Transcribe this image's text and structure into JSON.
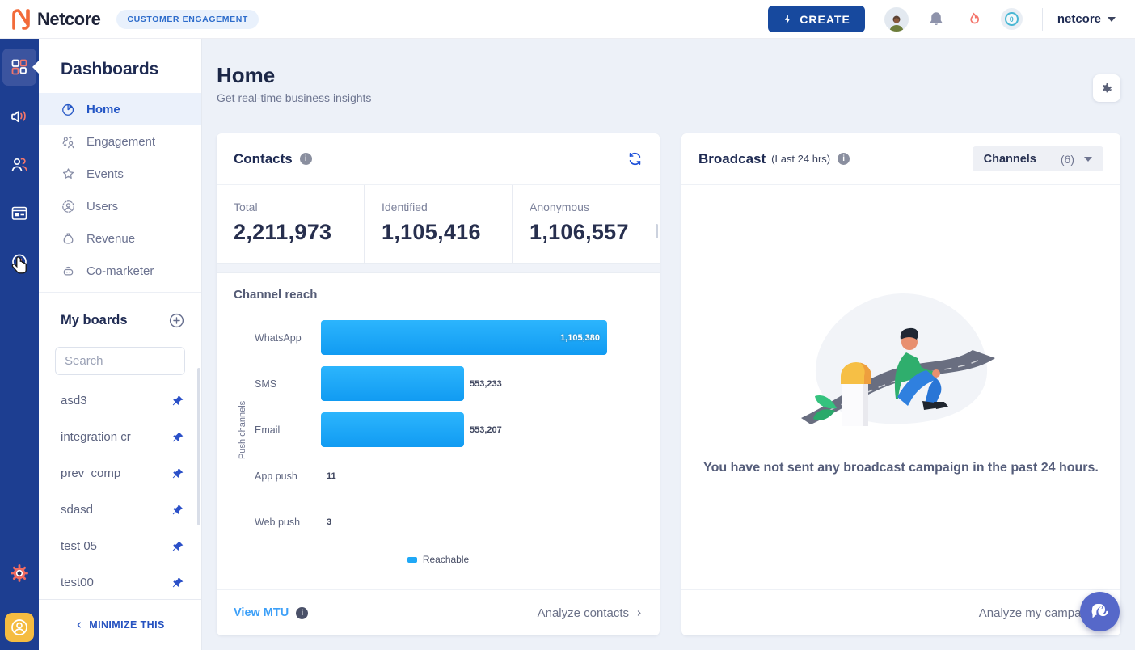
{
  "colors": {
    "brand_orange": "#f26b3a",
    "primary_blue": "#17499e",
    "rail_blue": "#1d3e91",
    "accent_coral": "#f2766b",
    "bar_blue": "#1fa8f6",
    "pin_blue": "#2b50c8",
    "link_blue": "#3da0f8",
    "fab_purple": "#5668c9",
    "avatar_yellow": "#f5bc41"
  },
  "header": {
    "brand": "Netcore",
    "product_badge": "CUSTOMER ENGAGEMENT",
    "create_label": "CREATE",
    "notification_count": "0",
    "account_label": "netcore"
  },
  "dashboards_panel": {
    "title": "Dashboards",
    "items": [
      {
        "label": "Home",
        "active": true
      },
      {
        "label": "Engagement",
        "active": false
      },
      {
        "label": "Events",
        "active": false
      },
      {
        "label": "Users",
        "active": false
      },
      {
        "label": "Revenue",
        "active": false
      },
      {
        "label": "Co-marketer",
        "active": false
      }
    ],
    "my_boards": {
      "title": "My boards",
      "search_placeholder": "Search",
      "boards": [
        "asd3",
        "integration cr",
        "prev_comp",
        "sdasd",
        "test 05",
        "test00"
      ]
    },
    "minimize_label": "MINIMIZE THIS"
  },
  "page": {
    "title": "Home",
    "subtitle": "Get real-time business insights"
  },
  "contacts_card": {
    "title": "Contacts",
    "stats": [
      {
        "label": "Total",
        "value": "2,211,973"
      },
      {
        "label": "Identified",
        "value": "1,105,416"
      },
      {
        "label": "Anonymous",
        "value": "1,106,557"
      }
    ],
    "view_mtu_label": "View MTU",
    "analyze_label": "Analyze contacts"
  },
  "broadcast_card": {
    "title": "Broadcast",
    "period": "(Last 24 hrs)",
    "channels_label": "Channels",
    "channels_count": "(6)",
    "empty_text": "You have not sent any broadcast campaign in the past 24 hours.",
    "analyze_label": "Analyze my campaigns"
  },
  "chart_data": {
    "type": "bar",
    "orientation": "horizontal",
    "title": "Channel reach",
    "ylabel": "Push channels",
    "categories": [
      "WhatsApp",
      "SMS",
      "Email",
      "App push",
      "Web push"
    ],
    "values": [
      1105380,
      553233,
      553207,
      11,
      3
    ],
    "value_labels": [
      "1,105,380",
      "553,233",
      "553,207",
      "11",
      "3"
    ],
    "legend": [
      "Reachable"
    ],
    "legend_position": "bottom-center",
    "bar_color": "#1fa8f6",
    "xlim": [
      0,
      1105380
    ],
    "grid": false
  }
}
